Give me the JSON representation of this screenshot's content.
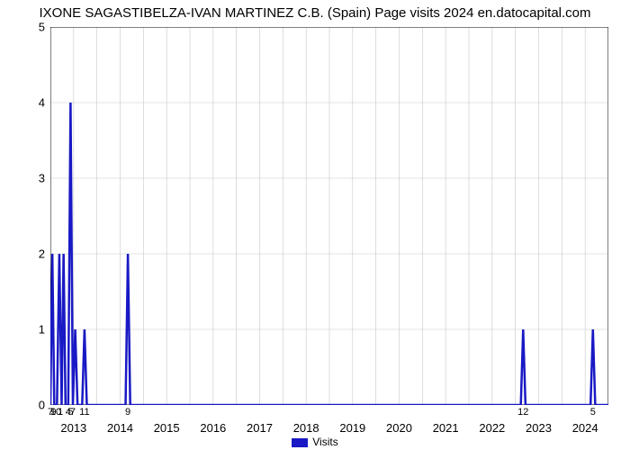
{
  "title": "IXONE SAGASTIBELZA-IVAN MARTINEZ C.B. (Spain) Page visits 2024 en.datocapital.com",
  "chart": {
    "type": "line",
    "line_color": "#1919c5",
    "line_width": 2.5,
    "background_color": "#ffffff",
    "grid_color": "#c8c8c8",
    "grid_width": 0.6,
    "border_color": "#000000",
    "ylim": [
      0,
      5
    ],
    "yticks": [
      0,
      1,
      2,
      3,
      4,
      5
    ],
    "xlim": [
      0,
      144
    ],
    "year_labels": [
      {
        "x": 6,
        "text": "2013"
      },
      {
        "x": 18,
        "text": "2014"
      },
      {
        "x": 30,
        "text": "2015"
      },
      {
        "x": 42,
        "text": "2016"
      },
      {
        "x": 54,
        "text": "2017"
      },
      {
        "x": 66,
        "text": "2018"
      },
      {
        "x": 78,
        "text": "2019"
      },
      {
        "x": 90,
        "text": "2020"
      },
      {
        "x": 102,
        "text": "2021"
      },
      {
        "x": 114,
        "text": "2022"
      },
      {
        "x": 126,
        "text": "2023"
      },
      {
        "x": 138,
        "text": "2024"
      }
    ],
    "minor_gridlines_x": [
      0,
      6,
      12,
      18,
      24,
      30,
      36,
      42,
      48,
      54,
      60,
      66,
      72,
      78,
      84,
      90,
      96,
      102,
      108,
      114,
      120,
      126,
      132,
      138,
      144
    ],
    "small_x_labels": [
      {
        "x": 0.0,
        "text": "7"
      },
      {
        "x": 0.8,
        "text": "9"
      },
      {
        "x": 1.4,
        "text": "10"
      },
      {
        "x": 2.6,
        "text": "1"
      },
      {
        "x": 4.6,
        "text": "4"
      },
      {
        "x": 5.2,
        "text": "5"
      },
      {
        "x": 5.8,
        "text": "7"
      },
      {
        "x": 8.8,
        "text": "11"
      },
      {
        "x": 20.0,
        "text": "9"
      },
      {
        "x": 122.0,
        "text": "12"
      },
      {
        "x": 140.0,
        "text": "5"
      }
    ],
    "series": [
      {
        "x": 0.0,
        "y": 0
      },
      {
        "x": 0.5,
        "y": 2
      },
      {
        "x": 1.0,
        "y": 0
      },
      {
        "x": 1.7,
        "y": 0
      },
      {
        "x": 2.3,
        "y": 2
      },
      {
        "x": 2.9,
        "y": 0
      },
      {
        "x": 3.4,
        "y": 2
      },
      {
        "x": 3.9,
        "y": 0
      },
      {
        "x": 4.6,
        "y": 0
      },
      {
        "x": 5.2,
        "y": 4
      },
      {
        "x": 5.8,
        "y": 0
      },
      {
        "x": 6.4,
        "y": 1
      },
      {
        "x": 7.0,
        "y": 0
      },
      {
        "x": 8.2,
        "y": 0
      },
      {
        "x": 8.8,
        "y": 1
      },
      {
        "x": 9.4,
        "y": 0
      },
      {
        "x": 19.4,
        "y": 0
      },
      {
        "x": 20.0,
        "y": 2
      },
      {
        "x": 20.6,
        "y": 0
      },
      {
        "x": 121.4,
        "y": 0
      },
      {
        "x": 122.0,
        "y": 1
      },
      {
        "x": 122.6,
        "y": 0
      },
      {
        "x": 139.4,
        "y": 0
      },
      {
        "x": 140.0,
        "y": 1
      },
      {
        "x": 140.6,
        "y": 0
      },
      {
        "x": 144.0,
        "y": 0
      }
    ]
  },
  "legend_label": "Visits"
}
